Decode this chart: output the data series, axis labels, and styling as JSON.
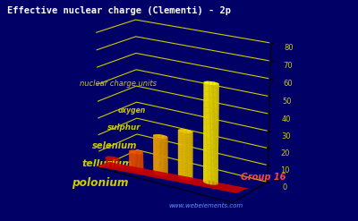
{
  "title": "Effective nuclear charge (Clementi) - 2p",
  "ylabel": "nuclear charge units",
  "x_label": "Group 16",
  "elements": [
    "oxygen",
    "sulphur",
    "selenium",
    "tellurium",
    "polonium"
  ],
  "values": [
    4.45,
    10.76,
    22.6,
    28.0,
    57.86
  ],
  "bar_colors_top": [
    "#cc1100",
    "#ff5500",
    "#ffaa00",
    "#ffcc00",
    "#ffee00"
  ],
  "bar_colors_side": [
    "#991100",
    "#cc4400",
    "#cc8800",
    "#ccaa00",
    "#ccbb00"
  ],
  "background_color": "#000066",
  "grid_color": "#cccc00",
  "text_color": "#cccc00",
  "title_color": "#ffffff",
  "ylim": [
    0,
    80
  ],
  "yticks": [
    0,
    10,
    20,
    30,
    40,
    50,
    60,
    70,
    80
  ],
  "website": "www.webelements.com",
  "base_color": "#880000",
  "base_color2": "#aa0000"
}
